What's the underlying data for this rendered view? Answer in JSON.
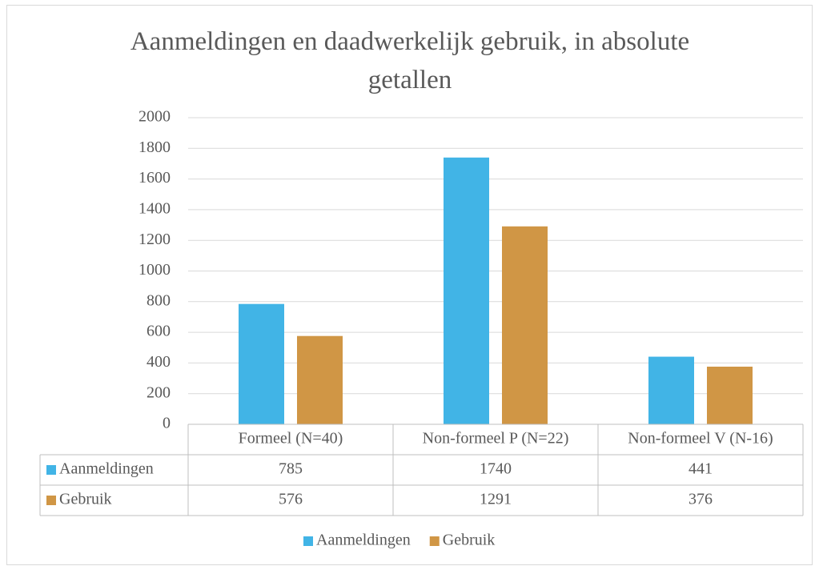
{
  "chart_data": {
    "type": "bar",
    "title": "Aanmeldingen en daadwerkelijk gebruik, in absolute getallen",
    "categories": [
      "Formeel (N=40)",
      "Non-formeel P (N=22)",
      "Non-formeel V (N-16)"
    ],
    "series": [
      {
        "name": "Aanmeldingen",
        "color": "#41b4e6",
        "values": [
          785,
          1740,
          441
        ]
      },
      {
        "name": "Gebruik",
        "color": "#d09645",
        "values": [
          576,
          1291,
          376
        ]
      }
    ],
    "ylim": [
      0,
      2000
    ],
    "yticks": [
      0,
      200,
      400,
      600,
      800,
      1000,
      1200,
      1400,
      1600,
      1800,
      2000
    ],
    "grid": true,
    "legend": "bottom",
    "data_table": true
  }
}
